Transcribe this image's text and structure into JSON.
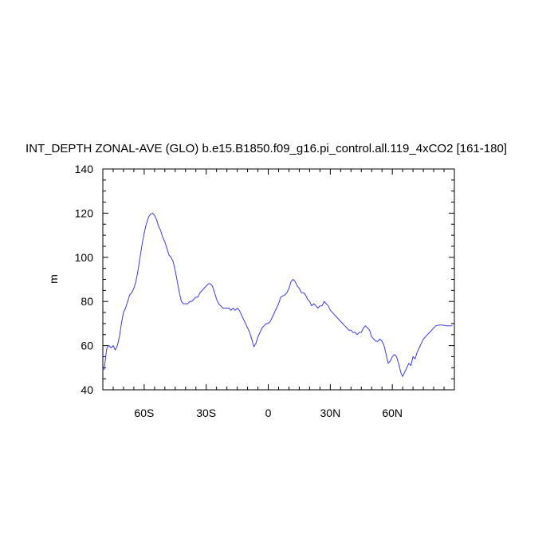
{
  "chart_data": {
    "type": "line",
    "title": "INT_DEPTH ZONAL-AVE (GLO) b.e15.B1850.f09_g16.pi_control.all.119_4xCO2 [161-180]",
    "xlabel": "",
    "ylabel": "m",
    "xlim": [
      -80,
      90
    ],
    "ylim": [
      40,
      140
    ],
    "x_ticks": [
      {
        "value": -60,
        "label": "60S"
      },
      {
        "value": -30,
        "label": "30S"
      },
      {
        "value": 0,
        "label": "0"
      },
      {
        "value": 30,
        "label": "30N"
      },
      {
        "value": 60,
        "label": "60N"
      }
    ],
    "y_ticks": [
      40,
      60,
      80,
      100,
      120,
      140
    ],
    "grid": false,
    "line_color": "#3a3af0",
    "series": [
      {
        "x": [
          -79.5,
          -79,
          -78.5,
          -78,
          -77,
          -76,
          -75,
          -74,
          -73,
          -72,
          -71,
          -70,
          -69,
          -68,
          -67,
          -66,
          -65,
          -64,
          -63,
          -62,
          -61,
          -60,
          -59,
          -58,
          -57,
          -56,
          -55,
          -54,
          -53,
          -52,
          -51,
          -50,
          -49,
          -48,
          -47,
          -46,
          -45,
          -44,
          -43,
          -42,
          -41,
          -40,
          -39,
          -38,
          -37,
          -36,
          -35,
          -34,
          -33,
          -32,
          -31,
          -30,
          -29,
          -28,
          -27,
          -26,
          -25,
          -24,
          -23,
          -22,
          -21,
          -20,
          -19,
          -18,
          -17,
          -16,
          -15,
          -14,
          -13,
          -12,
          -11,
          -10,
          -9,
          -8,
          -7,
          -6,
          -5,
          -4,
          -3,
          -2,
          -1,
          0,
          1,
          2,
          3,
          4,
          5,
          6,
          7,
          8,
          9,
          10,
          11,
          12,
          13,
          14,
          15,
          16,
          17,
          18,
          19,
          20,
          21,
          22,
          23,
          24,
          25,
          26,
          27,
          28,
          29,
          30,
          31,
          32,
          33,
          34,
          35,
          36,
          37,
          38,
          39,
          40,
          41,
          42,
          43,
          44,
          45,
          46,
          47,
          48,
          49,
          50,
          51,
          52,
          53,
          54,
          55,
          56,
          57,
          58,
          59,
          60,
          61,
          62,
          63,
          64,
          65,
          66,
          67,
          68,
          69,
          70,
          71,
          72,
          73,
          74,
          75,
          76,
          77,
          78,
          79,
          80,
          81,
          82,
          83,
          84,
          85,
          86,
          87,
          88,
          89
        ],
        "values": [
          49,
          52,
          56,
          59,
          60,
          59,
          60,
          58,
          60,
          64,
          70,
          75,
          77,
          80,
          83,
          84,
          86,
          89,
          94,
          100,
          106,
          111,
          115,
          118,
          119.5,
          120,
          119,
          117,
          114,
          112,
          109,
          107,
          104,
          101,
          100,
          98,
          94,
          89,
          84,
          80,
          79,
          79,
          79,
          80,
          80,
          81,
          82,
          82,
          84,
          85,
          86,
          87,
          88,
          88,
          87,
          84,
          81,
          79,
          78,
          77,
          77,
          77,
          77,
          76,
          77,
          76,
          77,
          76,
          74,
          72,
          70,
          68,
          66,
          63,
          59.5,
          61,
          64,
          66,
          68,
          69,
          70,
          70,
          71,
          73,
          75,
          77,
          79,
          82,
          82.5,
          83,
          84,
          86,
          89,
          90,
          89,
          87,
          86,
          84,
          84,
          83,
          81,
          80,
          78,
          79,
          78,
          77,
          78,
          78,
          80,
          79,
          78,
          76,
          75,
          74,
          73,
          72,
          71,
          70,
          69,
          68,
          67,
          67,
          66,
          66,
          65,
          66,
          66,
          68,
          69,
          68,
          67,
          64,
          63,
          62,
          62,
          63,
          62,
          60,
          56,
          52,
          53,
          55,
          56,
          55,
          52,
          48,
          46,
          48,
          50,
          52,
          51,
          55,
          54,
          57,
          59,
          61,
          63,
          64,
          65,
          66,
          67,
          68,
          69,
          69.2,
          69.3,
          69.3,
          69.2,
          69,
          69,
          69,
          69
        ]
      }
    ]
  }
}
